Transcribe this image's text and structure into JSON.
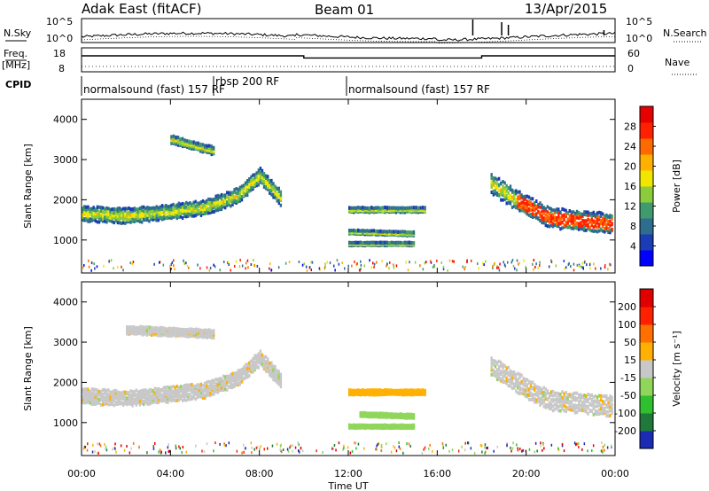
{
  "header": {
    "title": "Adak East (fitACF)",
    "beam": "Beam 01",
    "date": "13/Apr/2015"
  },
  "noise_panel": {
    "left_label": "N.Sky",
    "right_label": "N.Search",
    "ticks_left": [
      "10^5",
      "10^0"
    ],
    "ticks_right": [
      "10^5",
      "10^0"
    ]
  },
  "freq_panel": {
    "left_label_top": "Freq.",
    "left_label_bottom": "[MHz]",
    "right_label": "Nave",
    "ticks_left": [
      "18",
      "8"
    ],
    "ticks_right": [
      "60",
      "0"
    ]
  },
  "cpid_panel": {
    "label": "CPID",
    "segments": [
      {
        "label": "normalsound (fast) 157 RF",
        "start_hour": 0,
        "end_hour": 6
      },
      {
        "label": "rbsp 200 RF",
        "start_hour": 6,
        "end_hour": 12
      },
      {
        "label": "normalsound (fast) 157 RF",
        "start_hour": 12,
        "end_hour": 24
      }
    ]
  },
  "colorbars": {
    "power": {
      "label": "Power [dB]",
      "ticks": [
        "28",
        "24",
        "20",
        "16",
        "12",
        "8",
        "4"
      ],
      "colors": [
        "#0000ff",
        "#1a3cb4",
        "#2f6d8e",
        "#3f9b6f",
        "#8ccc3c",
        "#f2e600",
        "#ffb000",
        "#ff6a00",
        "#ff2000",
        "#e60000"
      ]
    },
    "velocity": {
      "label": "Velocity [m s⁻¹]",
      "ticks": [
        "200",
        "100",
        "50",
        "15",
        "-15",
        "-50",
        "-100",
        "-200"
      ],
      "colors": [
        "#1d2ab3",
        "#1f7a3a",
        "#2fbf2f",
        "#8fd65a",
        "#c8c8c8",
        "#ffb000",
        "#ff7000",
        "#ff2000",
        "#e00000"
      ]
    }
  },
  "chart_data": {
    "type": "heatmap",
    "xlabel": "Time UT",
    "ylabel": "Slant Range [km]",
    "x_ticks": [
      "00:00",
      "04:00",
      "08:00",
      "12:00",
      "16:00",
      "20:00",
      "00:00"
    ],
    "xlim_hours": [
      0,
      24
    ],
    "ylim_km": [
      180,
      4500
    ],
    "y_ticks": [
      "1000",
      "2000",
      "3000",
      "4000"
    ],
    "noise_sky_range": [
      1,
      100000
    ],
    "frequency_mhz": [
      {
        "start_hour": 0,
        "end_hour": 10,
        "value": 15.5
      },
      {
        "start_hour": 10,
        "end_hour": 18,
        "value": 14.3
      },
      {
        "start_hour": 18,
        "end_hour": 24,
        "value": 15.5
      }
    ],
    "power_db_range": [
      0,
      30
    ],
    "velocity_range": [
      -200,
      200
    ]
  }
}
